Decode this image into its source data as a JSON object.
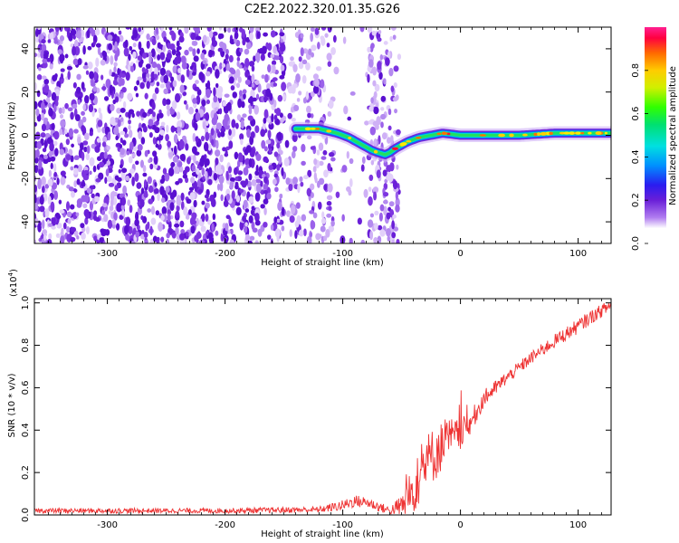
{
  "title": "C2E2.2022.320.01.35.G26",
  "colors": {
    "snr_line": "#ee3333",
    "spectro_bg": "#ffffff",
    "scatter_dark": "#6a1fd8",
    "scatter_light": "#c9a5f5"
  },
  "chart_data": [
    {
      "type": "heatmap",
      "name": "spectrogram",
      "xlabel": "Height of straight line (km)",
      "ylabel": "Frequency (Hz)",
      "xlim": [
        -362,
        128
      ],
      "ylim": [
        -50,
        50
      ],
      "xticks": [
        -300,
        -200,
        -100,
        0,
        100
      ],
      "xtick_labels": [
        "-300",
        "-200",
        "-100",
        "0",
        "100"
      ],
      "yticks": [
        -40,
        -20,
        0,
        20,
        40
      ],
      "ytick_labels": [
        "-40",
        "-20",
        "0",
        "20",
        "40"
      ],
      "noise_region": {
        "x_start": -362,
        "x_end": -118,
        "gap_start": -100,
        "gap_end": -60
      },
      "doppler_trace": {
        "x": [
          -140,
          -120,
          -105,
          -95,
          -85,
          -75,
          -70,
          -64,
          -60,
          -55,
          -45,
          -35,
          -25,
          -15,
          0,
          20,
          50,
          80,
          100,
          128
        ],
        "y": [
          3,
          3,
          1,
          -1,
          -4,
          -7,
          -8,
          -9,
          -8,
          -6,
          -3,
          -1,
          0,
          1,
          0,
          0,
          0,
          1,
          1,
          1
        ]
      },
      "colorbar": {
        "label": "Normalized spectral amplitude",
        "ticks": [
          0.0,
          0.2,
          0.4,
          0.6,
          0.8
        ],
        "tick_labels": [
          "0.0",
          "0.2",
          "0.4",
          "0.6",
          "0.8"
        ],
        "range": [
          0,
          1
        ]
      }
    },
    {
      "type": "line",
      "name": "snr",
      "xlabel": "Height of straight line (km)",
      "ylabel": "SNR (10 * v/v)",
      "scale_label": "(x10",
      "scale_exp": "4",
      "scale_close": ")",
      "xlim": [
        -362,
        128
      ],
      "ylim": [
        0,
        1.02
      ],
      "xticks": [
        -300,
        -200,
        -100,
        0,
        100
      ],
      "xtick_labels": [
        "-300",
        "-200",
        "-100",
        "0",
        "100"
      ],
      "yticks": [
        0.0,
        0.2,
        0.4,
        0.6,
        0.8,
        1.0
      ],
      "ytick_labels": [
        "0.0",
        "0.2",
        "0.4",
        "0.6",
        "0.8",
        "1.0"
      ],
      "trend_x": [
        -362,
        -200,
        -120,
        -100,
        -90,
        -80,
        -70,
        -60,
        -50,
        -40,
        -30,
        -20,
        -10,
        0,
        10,
        20,
        30,
        40,
        60,
        80,
        100,
        110,
        128
      ],
      "trend_y": [
        0.02,
        0.02,
        0.025,
        0.045,
        0.065,
        0.06,
        0.04,
        0.02,
        0.04,
        0.12,
        0.24,
        0.3,
        0.36,
        0.38,
        0.45,
        0.55,
        0.6,
        0.65,
        0.74,
        0.82,
        0.89,
        0.93,
        0.99
      ],
      "noise_x": [
        -362,
        -200,
        -120,
        -90,
        -60,
        -50,
        -40,
        -30,
        -20,
        -10,
        0,
        20,
        40,
        60,
        100,
        128
      ],
      "noise_amp": [
        0.012,
        0.012,
        0.015,
        0.03,
        0.02,
        0.06,
        0.12,
        0.14,
        0.13,
        0.1,
        0.07,
        0.04,
        0.03,
        0.03,
        0.035,
        0.03
      ]
    }
  ]
}
